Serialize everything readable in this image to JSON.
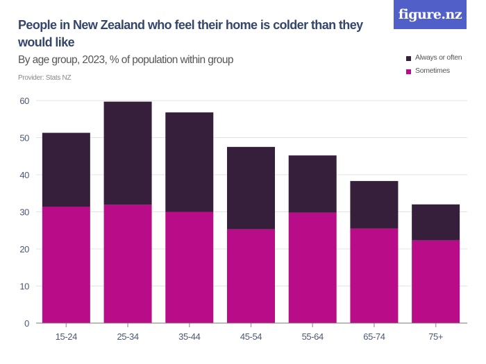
{
  "header": {
    "title": "People in New Zealand who feel their home is colder than they would like",
    "subtitle": "By age group, 2023, % of population within group",
    "provider": "Provider: Stats NZ",
    "logo_text": "figure.nz"
  },
  "colors": {
    "always_or_often": "#361f3b",
    "sometimes": "#b90c88",
    "logo_bg": "#5060c8",
    "grid": "#e3e3e3"
  },
  "chart_data": {
    "type": "bar",
    "stacked": true,
    "title": "People in New Zealand who feel their home is colder than they would like",
    "subtitle": "By age group, 2023, % of population within group",
    "categories": [
      "15-24",
      "25-34",
      "35-44",
      "45-54",
      "55-64",
      "65-74",
      "75+"
    ],
    "series": [
      {
        "name": "Sometimes",
        "values": [
          31.4,
          31.9,
          30.0,
          25.3,
          29.8,
          25.5,
          22.3
        ]
      },
      {
        "name": "Always or often",
        "values": [
          19.9,
          27.8,
          26.8,
          22.2,
          15.4,
          12.8,
          9.7
        ]
      }
    ],
    "ylim": [
      0,
      60
    ],
    "yticks": [
      0,
      10,
      20,
      30,
      40,
      50,
      60
    ],
    "grid": true,
    "legend": "top-right",
    "legend_entries": [
      "Always or often",
      "Sometimes"
    ]
  }
}
